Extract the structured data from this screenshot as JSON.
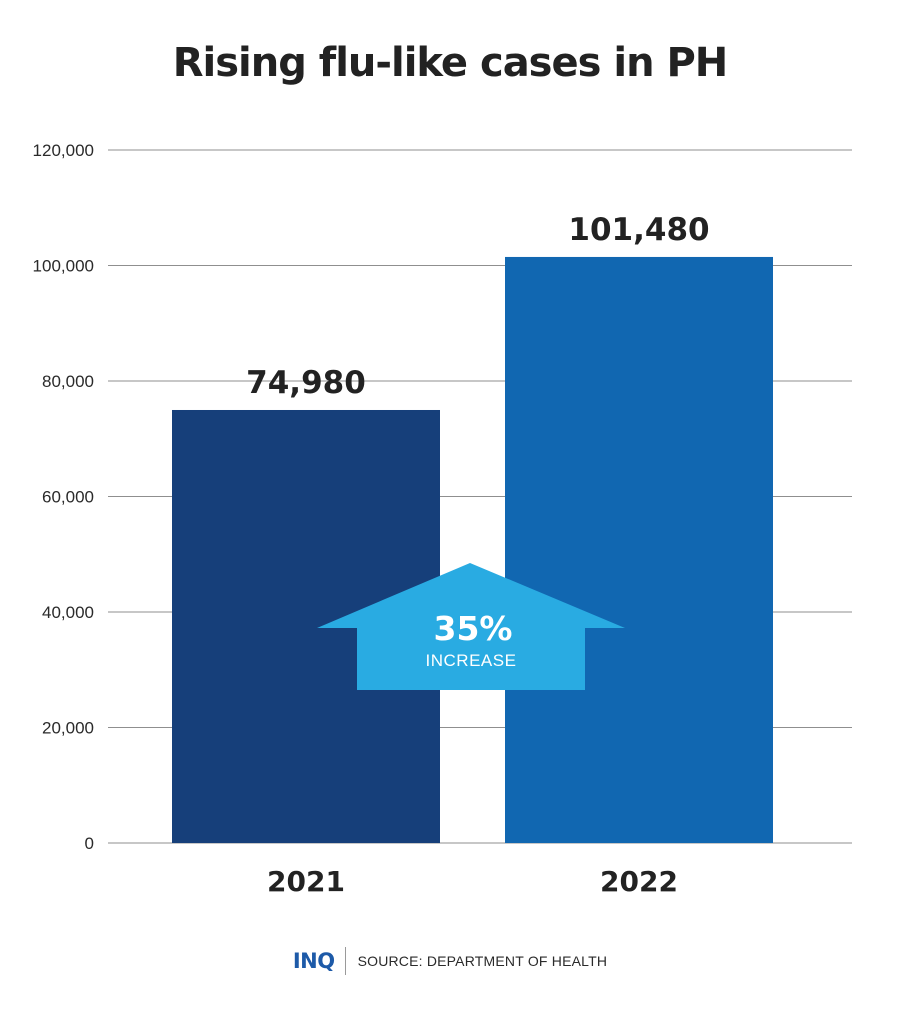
{
  "chart_data": {
    "type": "bar",
    "title": "Rising flu-like cases in PH",
    "categories": [
      "2021",
      "2022"
    ],
    "values": [
      74980,
      101480
    ],
    "value_labels": [
      "74,980",
      "101,480"
    ],
    "bar_colors": [
      "#163f7a",
      "#1167b1"
    ],
    "ylim": [
      0,
      120000
    ],
    "yticks": [
      0,
      20000,
      40000,
      60000,
      80000,
      100000,
      120000
    ],
    "ytick_labels": [
      "0",
      "20,000",
      "40,000",
      "60,000",
      "80,000",
      "100,000",
      "120,000"
    ],
    "grid": true,
    "annotation": {
      "value": "35%",
      "text": "INCREASE",
      "icon": "up-arrow-icon",
      "color": "#29abe2"
    }
  },
  "footer": {
    "logo": "INQ",
    "logo_color": "#1d5aa8",
    "source": "SOURCE: DEPARTMENT OF HEALTH"
  }
}
